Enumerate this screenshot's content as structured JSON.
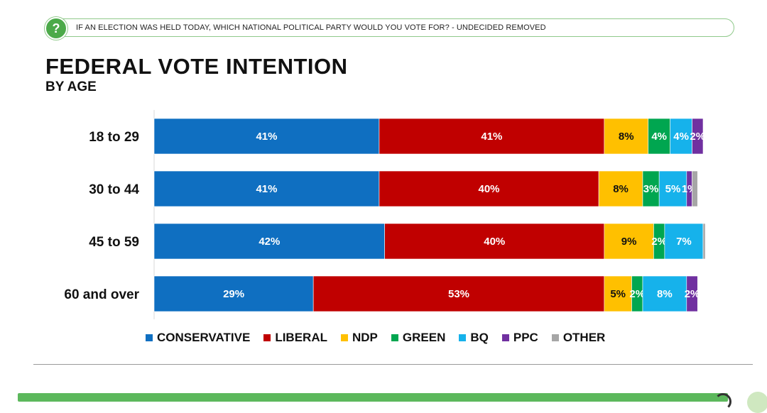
{
  "header": {
    "question": "IF AN ELECTION WAS HELD TODAY, WHICH NATIONAL POLITICAL PARTY WOULD YOU VOTE FOR? - UNDECIDED REMOVED",
    "icon": "question-icon",
    "icon_glyph": "?"
  },
  "chart_data": {
    "type": "bar",
    "orientation": "horizontal",
    "stacked": true,
    "title": "FEDERAL VOTE INTENTION",
    "subtitle": "BY AGE",
    "xlim": [
      0,
      100
    ],
    "grid": false,
    "legend_position": "bottom",
    "categories": [
      "18 to 29",
      "30 to 44",
      "45 to 59",
      "60 and over"
    ],
    "series": [
      {
        "name": "CONSERVATIVE",
        "color": "#0f6fc1",
        "values": [
          41,
          41,
          42,
          29
        ],
        "labels": [
          "41%",
          "41%",
          "42%",
          "29%"
        ]
      },
      {
        "name": "LIBERAL",
        "color": "#c00000",
        "values": [
          41,
          40,
          40,
          53
        ],
        "labels": [
          "41%",
          "40%",
          "40%",
          "53%"
        ]
      },
      {
        "name": "NDP",
        "color": "#ffc000",
        "values": [
          8,
          8,
          9,
          5
        ],
        "labels": [
          "8%",
          "8%",
          "9%",
          "5%"
        ]
      },
      {
        "name": "GREEN",
        "color": "#00a650",
        "values": [
          4,
          3,
          2,
          2
        ],
        "labels": [
          "4%",
          "3%",
          "2%",
          "2%"
        ]
      },
      {
        "name": "BQ",
        "color": "#16b2eb",
        "values": [
          4,
          5,
          7,
          8
        ],
        "labels": [
          "4%",
          "5%",
          "7%",
          "8%"
        ]
      },
      {
        "name": "PPC",
        "color": "#7030a0",
        "values": [
          2,
          1,
          0,
          2
        ],
        "labels": [
          "2%",
          "1%",
          "",
          "2%"
        ]
      },
      {
        "name": "OTHER",
        "color": "#a6a6a6",
        "values": [
          0,
          1,
          0.4,
          0
        ],
        "labels": [
          "",
          "",
          "",
          ""
        ]
      }
    ]
  }
}
